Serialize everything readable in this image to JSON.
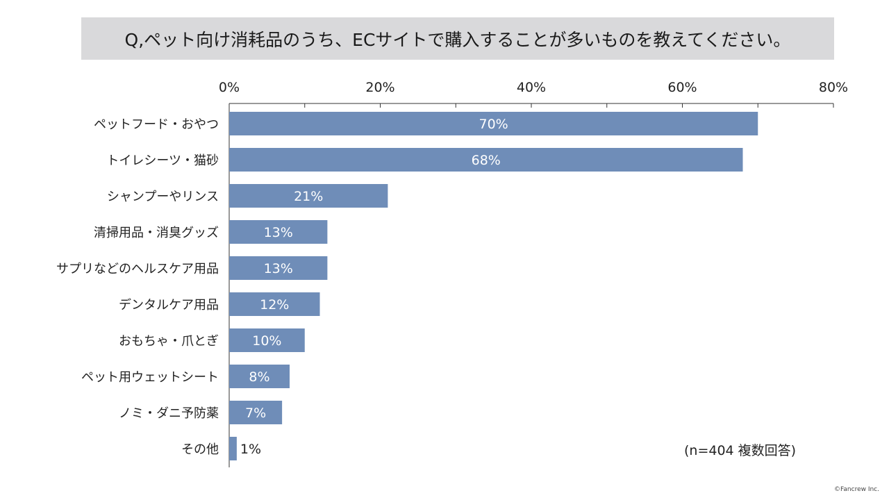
{
  "title": "Q,ペット向け消耗品のうち、ECサイトで購入することが多いものを教えてください。",
  "note": "(n=404 複数回答)",
  "copyright": "©Fancrew Inc.",
  "colors": {
    "bar": "#6f8db8",
    "bar_label_inside": "#ffffff",
    "bar_label_outside": "#222222",
    "axis": "#333333",
    "title_bg": "#d9d9db"
  },
  "chart_data": {
    "type": "bar",
    "orientation": "horizontal",
    "categories": [
      "ペットフード・おやつ",
      "トイレシーツ・猫砂",
      "シャンプーやリンス",
      "清掃用品・消臭グッズ",
      "サプリなどのヘルスケア用品",
      "デンタルケア用品",
      "おもちゃ・爪とぎ",
      "ペット用ウェットシート",
      "ノミ・ダニ予防薬",
      "その他"
    ],
    "values": [
      70,
      68,
      21,
      13,
      13,
      12,
      10,
      8,
      7,
      1
    ],
    "data_labels": [
      "70%",
      "68%",
      "21%",
      "13%",
      "13%",
      "12%",
      "10%",
      "8%",
      "7%",
      "1%"
    ],
    "xlim": [
      0,
      80
    ],
    "tick_values": [
      0,
      20,
      40,
      60,
      80
    ],
    "tick_labels": [
      "0%",
      "20%",
      "40%",
      "60%",
      "80%"
    ],
    "axis_position": "top",
    "grid": false,
    "legend": "none"
  }
}
